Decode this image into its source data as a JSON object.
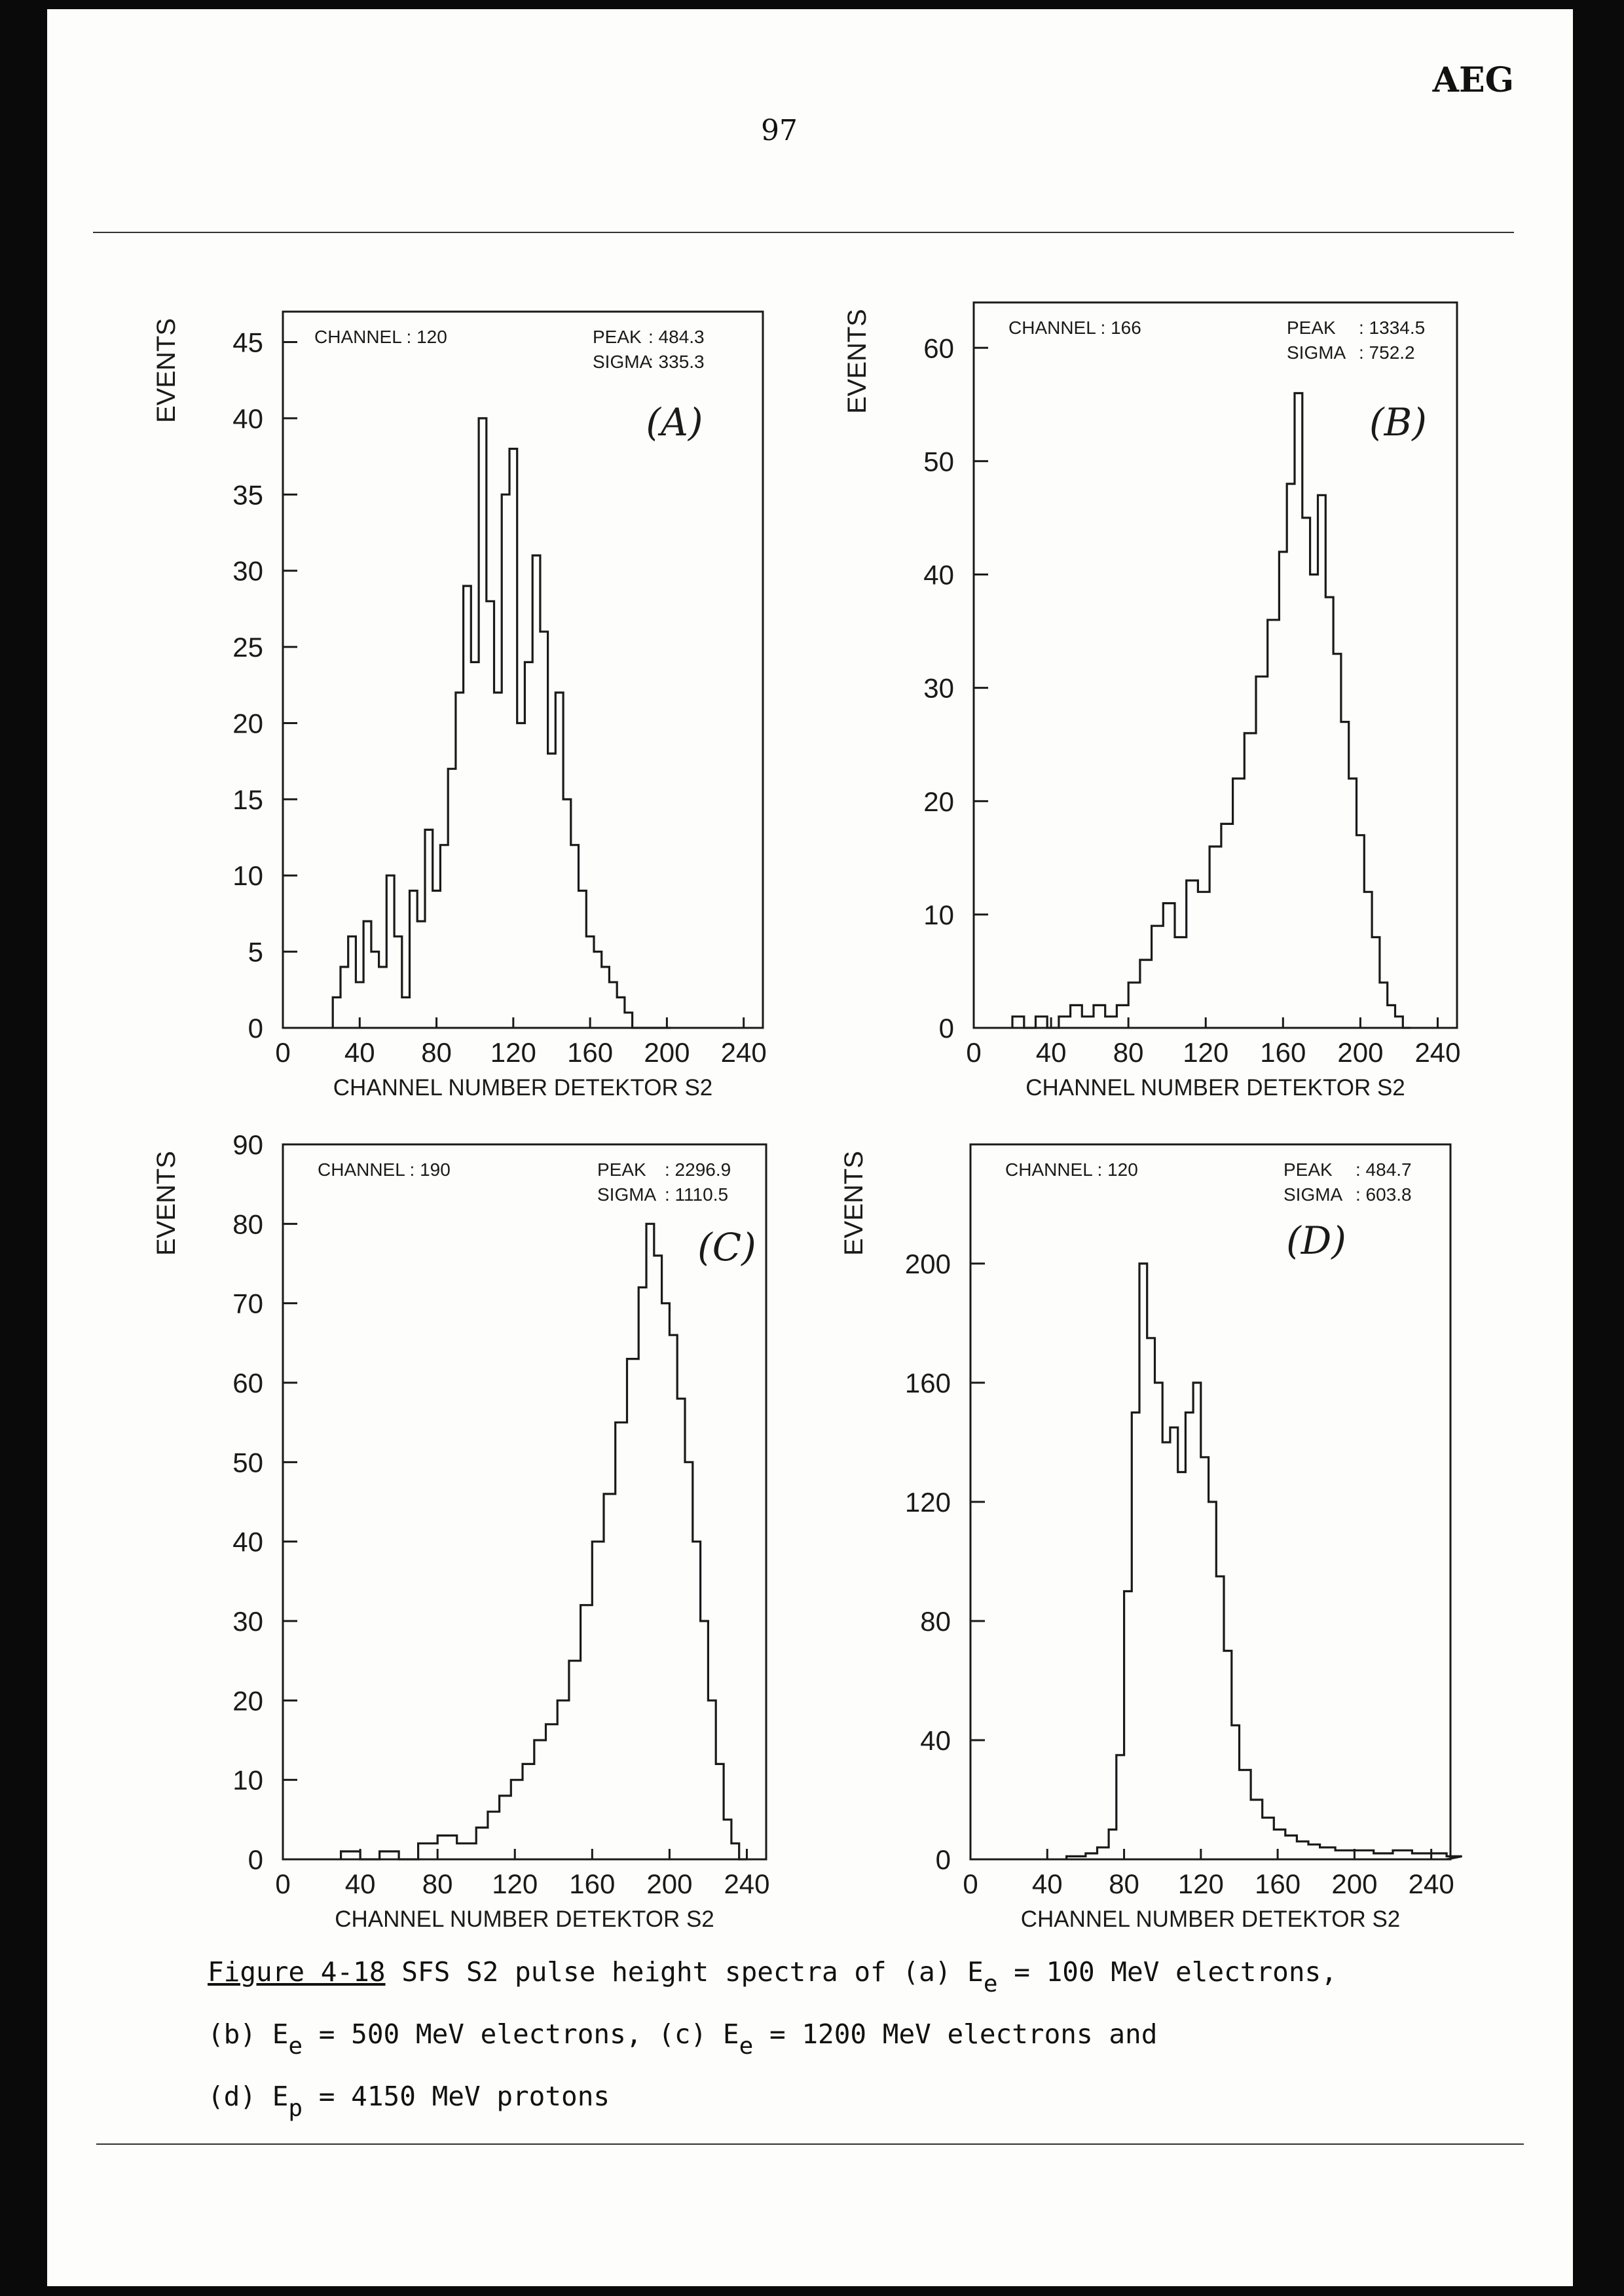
{
  "header": {
    "company": "AEG",
    "page_number": "97"
  },
  "caption": {
    "figure_label": "Figure 4-18",
    "line1_text": " SFS S2 pulse height spectra of (a) E",
    "line1_sub": "e",
    "line1_end": " = 100 MeV electrons,",
    "line2_a": "(b) E",
    "line2_sub1": "e",
    "line2_b": " = 500 MeV electrons, (c) E",
    "line2_sub2": "e",
    "line2_c": " = 1200 MeV electrons and",
    "line3_a": "(d) E",
    "line3_sub": "p",
    "line3_b": " = 4150 MeV protons"
  },
  "chart_data": [
    {
      "type": "histogram-step",
      "panel_label": "(A)",
      "xlabel": "CHANNEL NUMBER DETEKTOR S2",
      "ylabel": "EVENTS",
      "xlim": [
        0,
        250
      ],
      "ylim": [
        0,
        47
      ],
      "xticks": [
        0,
        40,
        80,
        120,
        160,
        200,
        240
      ],
      "yticks": [
        0,
        5,
        10,
        15,
        20,
        25,
        30,
        35,
        40,
        45
      ],
      "stats": [
        {
          "label": "CHANNEL :",
          "value": "120"
        },
        {
          "label": "PEAK",
          "value": ":  484.3"
        },
        {
          "label": "SIGMA",
          "value": ":  335.3"
        }
      ],
      "series": [
        {
          "x": [
            26,
            30,
            34,
            38,
            42,
            46,
            50,
            54,
            58,
            62,
            66,
            70,
            74,
            78,
            82,
            86,
            90,
            94,
            98,
            102,
            106,
            110,
            114,
            118,
            122,
            126,
            130,
            134,
            138,
            142,
            146,
            150,
            154,
            158,
            162,
            166,
            170,
            174,
            178,
            182,
            186,
            190,
            194,
            198
          ],
          "values": [
            2,
            4,
            6,
            3,
            7,
            5,
            4,
            10,
            6,
            2,
            9,
            7,
            13,
            9,
            12,
            17,
            22,
            29,
            24,
            40,
            28,
            22,
            35,
            38,
            20,
            24,
            31,
            26,
            18,
            22,
            15,
            12,
            9,
            6,
            5,
            4,
            3,
            2,
            1,
            0,
            0,
            0,
            0,
            0
          ]
        }
      ]
    },
    {
      "type": "histogram-step",
      "panel_label": "(B)",
      "xlabel": "CHANNEL NUMBER DETEKTOR S2",
      "ylabel": "EVENTS",
      "xlim": [
        0,
        250
      ],
      "ylim": [
        0,
        64
      ],
      "xticks": [
        0,
        40,
        80,
        120,
        160,
        200,
        240
      ],
      "yticks": [
        0,
        10,
        20,
        30,
        40,
        50,
        60
      ],
      "stats": [
        {
          "label": "CHANNEL :",
          "value": "166"
        },
        {
          "label": "PEAK",
          "value": ":  1334.5"
        },
        {
          "label": "SIGMA",
          "value": ":  752.2"
        }
      ],
      "series": [
        {
          "x": [
            20,
            26,
            32,
            38,
            44,
            50,
            56,
            62,
            68,
            74,
            80,
            86,
            92,
            98,
            104,
            110,
            116,
            122,
            128,
            134,
            140,
            146,
            152,
            158,
            162,
            166,
            170,
            174,
            178,
            182,
            186,
            190,
            194,
            198,
            202,
            206,
            210,
            214,
            218,
            222
          ],
          "values": [
            1,
            0,
            1,
            0,
            1,
            2,
            1,
            2,
            1,
            2,
            4,
            6,
            9,
            11,
            8,
            13,
            12,
            16,
            18,
            22,
            26,
            31,
            36,
            42,
            48,
            56,
            45,
            40,
            47,
            38,
            33,
            27,
            22,
            17,
            12,
            8,
            4,
            2,
            1,
            0
          ]
        }
      ]
    },
    {
      "type": "histogram-step",
      "panel_label": "(C)",
      "xlabel": "CHANNEL NUMBER DETEKTOR S2",
      "ylabel": "EVENTS",
      "xlim": [
        0,
        250
      ],
      "ylim": [
        0,
        90
      ],
      "xticks": [
        0,
        40,
        80,
        120,
        160,
        200,
        240
      ],
      "yticks": [
        0,
        10,
        20,
        30,
        40,
        50,
        60,
        70,
        80,
        90
      ],
      "stats": [
        {
          "label": "CHANNEL :",
          "value": "190"
        },
        {
          "label": "PEAK",
          "value": ":  2296.9"
        },
        {
          "label": "SIGMA",
          "value": ":  1110.5"
        }
      ],
      "series": [
        {
          "x": [
            30,
            40,
            50,
            60,
            70,
            80,
            90,
            100,
            106,
            112,
            118,
            124,
            130,
            136,
            142,
            148,
            154,
            160,
            166,
            172,
            178,
            184,
            188,
            192,
            196,
            200,
            204,
            208,
            212,
            216,
            220,
            224,
            228,
            232,
            236
          ],
          "values": [
            1,
            0,
            1,
            0,
            2,
            3,
            2,
            4,
            6,
            8,
            10,
            12,
            15,
            17,
            20,
            25,
            32,
            40,
            46,
            55,
            63,
            72,
            80,
            76,
            70,
            66,
            58,
            50,
            40,
            30,
            20,
            12,
            5,
            2,
            0
          ]
        }
      ]
    },
    {
      "type": "histogram-step",
      "panel_label": "(D)",
      "xlabel": "CHANNEL NUMBER DETEKTOR S2",
      "ylabel": "EVENTS",
      "xlim": [
        0,
        250
      ],
      "ylim": [
        0,
        240
      ],
      "xticks": [
        0,
        40,
        80,
        120,
        160,
        200,
        240
      ],
      "yticks": [
        0,
        40,
        80,
        120,
        160,
        200
      ],
      "stats": [
        {
          "label": "CHANNEL :",
          "value": "120"
        },
        {
          "label": "PEAK",
          "value": ":  484.7"
        },
        {
          "label": "SIGMA",
          "value": ":  603.8"
        }
      ],
      "series": [
        {
          "x": [
            50,
            60,
            66,
            72,
            76,
            80,
            84,
            88,
            92,
            96,
            100,
            104,
            108,
            112,
            116,
            120,
            124,
            128,
            132,
            136,
            140,
            146,
            152,
            158,
            164,
            170,
            176,
            182,
            190,
            200,
            210,
            220,
            230,
            240,
            248
          ],
          "values": [
            1,
            2,
            4,
            10,
            35,
            90,
            150,
            200,
            175,
            160,
            140,
            145,
            130,
            150,
            160,
            135,
            120,
            95,
            70,
            45,
            30,
            20,
            14,
            10,
            8,
            6,
            5,
            4,
            3,
            3,
            2,
            3,
            2,
            2,
            1
          ]
        }
      ]
    }
  ]
}
